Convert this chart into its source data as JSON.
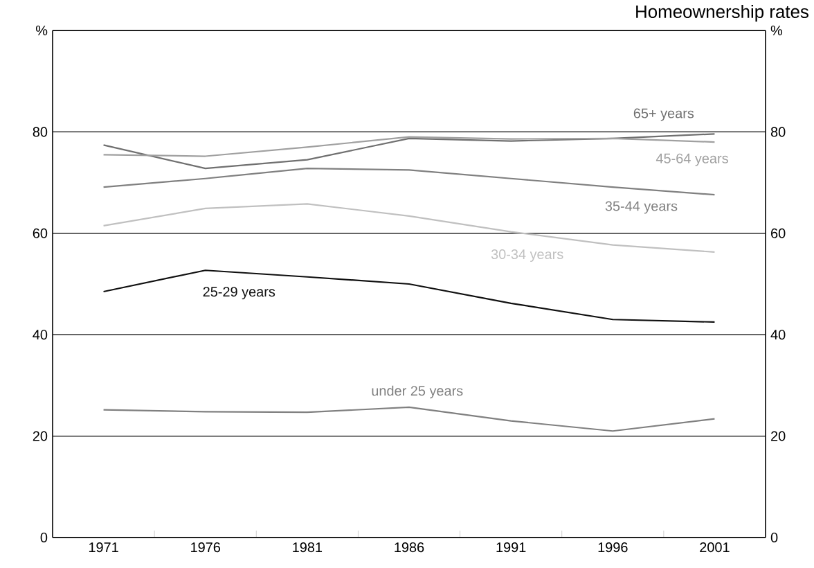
{
  "chart_data": {
    "type": "line",
    "title": "Homeownership rates",
    "categories": [
      "1971",
      "1976",
      "1981",
      "1986",
      "1991",
      "1996",
      "2001"
    ],
    "series": [
      {
        "name": "65+ years",
        "color": "#707070",
        "values": [
          77.4,
          72.8,
          74.5,
          78.7,
          78.2,
          78.7,
          79.6
        ]
      },
      {
        "name": "45-64 years",
        "color": "#a0a0a0",
        "values": [
          75.5,
          75.2,
          77.0,
          79.0,
          78.6,
          78.7,
          78.0
        ]
      },
      {
        "name": "35-44 years",
        "color": "#808080",
        "values": [
          69.1,
          70.8,
          72.8,
          72.5,
          70.8,
          69.1,
          67.6
        ]
      },
      {
        "name": "30-34 years",
        "color": "#c0c0c0",
        "values": [
          61.5,
          64.9,
          65.8,
          63.4,
          60.3,
          57.7,
          56.3
        ]
      },
      {
        "name": "25-29 years",
        "color": "#101010",
        "values": [
          48.5,
          52.7,
          51.4,
          50.0,
          46.2,
          43.0,
          42.5
        ]
      },
      {
        "name": "under 25 years",
        "color": "#808080",
        "values": [
          25.2,
          24.8,
          24.7,
          25.7,
          23.0,
          21.0,
          23.4
        ]
      }
    ],
    "ylim": [
      0,
      100
    ],
    "yticks": [
      0,
      20,
      40,
      60,
      80,
      {
        "value": 100,
        "label": "%"
      }
    ],
    "y2lim": [
      0,
      100
    ],
    "y2ticks": [
      0,
      20,
      40,
      60,
      80,
      {
        "value": 100,
        "label": "%"
      }
    ],
    "grid": "y",
    "legend": false,
    "marker": "none",
    "line_style": "solid"
  }
}
